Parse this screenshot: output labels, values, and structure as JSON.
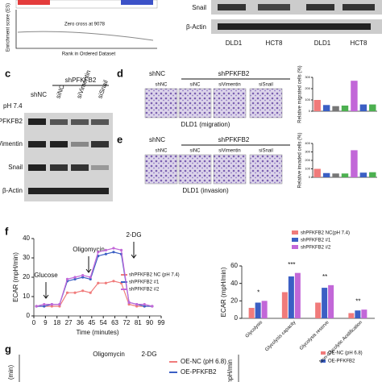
{
  "panel_a": {
    "y_label": "Enrichment score (ES)",
    "x_label": "Rank in Ordered Dataset",
    "note": "Zero cross at 9078"
  },
  "panel_b": {
    "rows": [
      "Snail",
      "β-Actin"
    ],
    "cells": [
      "DLD1",
      "HCT8",
      "DLD1",
      "HCT8"
    ]
  },
  "panel_c": {
    "letter": "c",
    "group": "shPFKFB2",
    "control": "shNC",
    "condition": "pH 7.4",
    "lanes": [
      "siNC",
      "siVimentin",
      "siSnail"
    ],
    "rows": [
      "PFKFB2",
      "Vimentin",
      "Snail",
      "β-Actin"
    ]
  },
  "panel_d": {
    "letter": "d",
    "groups": [
      "shNC",
      "shPFKFB2"
    ],
    "lanes": [
      "shNC",
      "siNC",
      "siVimentin",
      "siSnail"
    ],
    "caption": "DLD1 (migration)",
    "y_label": "Relative migrated cells (%)",
    "values": [
      100,
      55,
      45,
      50,
      270,
      60,
      60
    ],
    "ylim": [
      0,
      300
    ],
    "yticks": [
      0,
      100,
      200,
      300
    ]
  },
  "panel_e": {
    "letter": "e",
    "groups": [
      "shNC",
      "shPFKFB2"
    ],
    "lanes": [
      "shNC",
      "siNC",
      "siVimentin",
      "siSnail"
    ],
    "caption": "DLD1 (invasion)",
    "y_label": "Relative invaded cells (%)",
    "values": [
      100,
      50,
      45,
      45,
      320,
      55,
      60
    ],
    "ylim": [
      0,
      400
    ],
    "yticks": [
      0,
      100,
      200,
      300,
      400
    ]
  },
  "panel_f": {
    "letter": "f",
    "line": {
      "type": "line",
      "y_label": "ECAR (mpH/min)",
      "x_label": "Time (minutes)",
      "annotations": [
        "Glucose",
        "Oligomycin",
        "2-DG"
      ],
      "x": [
        2,
        8,
        14,
        20,
        26,
        32,
        38,
        44,
        50,
        56,
        62,
        68,
        74,
        80,
        86,
        92
      ],
      "series": [
        {
          "name": "shPFKFB2 NC (pH 7.4)",
          "color": "#f07b7b",
          "values": [
            5,
            5,
            5,
            5,
            12,
            12,
            13,
            12,
            17,
            17,
            18,
            17,
            6,
            5,
            5,
            5
          ]
        },
        {
          "name": "shPFKFB2 #1",
          "color": "#3b5fc4",
          "values": [
            5,
            5,
            6,
            6,
            18,
            19,
            20,
            19,
            31,
            32,
            33,
            32,
            7,
            6,
            5,
            5
          ]
        },
        {
          "name": "shPFKFB2 #2",
          "color": "#c267d8",
          "values": [
            5,
            6,
            6,
            6,
            19,
            20,
            21,
            20,
            33,
            34,
            35,
            34,
            7,
            6,
            6,
            5
          ]
        }
      ],
      "xlim": [
        0,
        99
      ],
      "xticks": [
        0,
        9,
        18,
        27,
        36,
        45,
        54,
        63,
        72,
        81,
        90,
        99
      ],
      "ylim": [
        0,
        40
      ],
      "yticks": [
        0,
        10,
        20,
        30,
        40
      ]
    },
    "bar": {
      "type": "bar",
      "y_label": "ECAR (mpH/min)",
      "categories": [
        "Glycolysis",
        "Glycolysis capacity",
        "Glycolysis reserve",
        "Non-Glycolytic Acidification"
      ],
      "series": [
        {
          "name": "shPFKFB2 NC(pH 7.4)",
          "color": "#f07b7b",
          "values": [
            12,
            30,
            18,
            6
          ]
        },
        {
          "name": "shPFKFB2 #1",
          "color": "#3b5fc4",
          "values": [
            18,
            48,
            35,
            9
          ]
        },
        {
          "name": "shPFKFB2 #2",
          "color": "#c267d8",
          "values": [
            20,
            52,
            38,
            10
          ]
        }
      ],
      "ylim": [
        0,
        60
      ],
      "yticks": [
        0,
        20,
        40,
        60
      ],
      "stars": [
        "*",
        "***",
        "**",
        "**"
      ]
    }
  },
  "panel_g": {
    "letter": "g",
    "y_label": "(min)",
    "annotations": [
      "Oligomycin",
      "2-DG"
    ],
    "legend": [
      "OE-NC (pH 6.8)",
      "OE-PFKFB2"
    ],
    "bar_y_label": "mpH/min"
  }
}
